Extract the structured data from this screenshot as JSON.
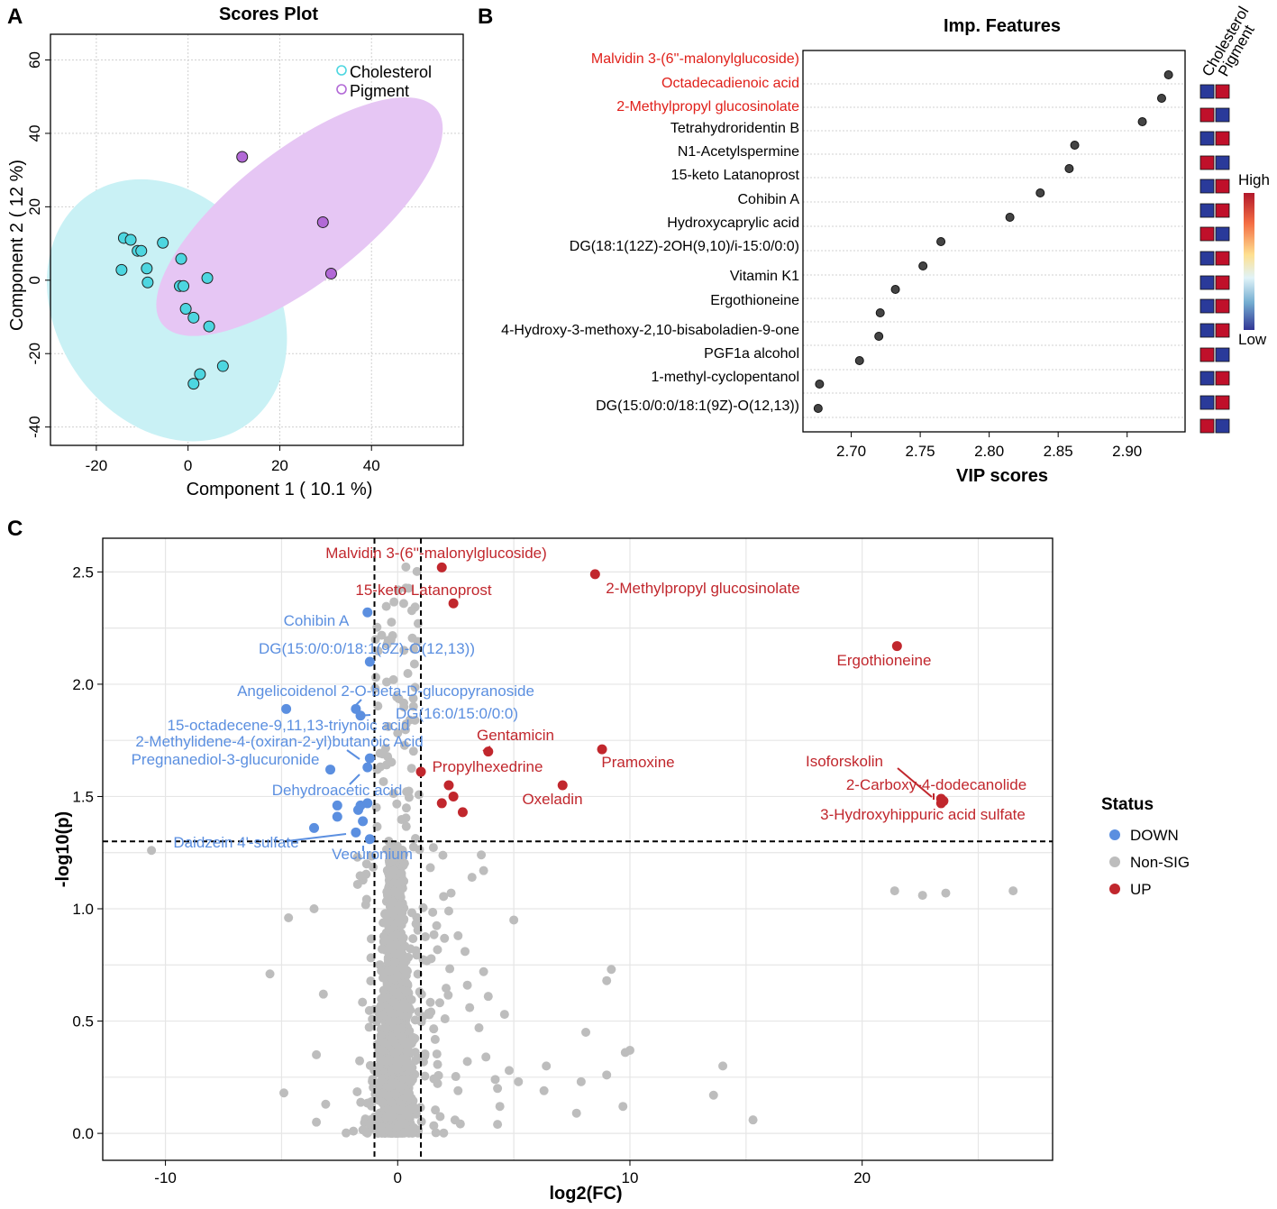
{
  "figure": {
    "panel_labels": [
      "A",
      "B",
      "C"
    ],
    "colors": {
      "cholesterol": "#4dd6e0",
      "cholesterol_ellipse": "#c9f1f5",
      "pigment": "#b269d6",
      "pigment_ellipse": "#e6c6f4",
      "up": "#c1272d",
      "down": "#5b8fe0",
      "nonsig": "#bdbdbd",
      "heat_high": "#c0102a",
      "heat_low": "#2a3a9a",
      "highlight_text": "#e0201a"
    }
  },
  "chart_data": [
    {
      "panel": "A",
      "type": "scatter",
      "title": "Scores Plot",
      "xlabel": "Component 1 ( 10.1 %)",
      "ylabel": "Component 2 ( 12 %)",
      "xlim": [
        -30,
        60
      ],
      "ylim": [
        -45,
        67
      ],
      "xticks": [
        -20,
        0,
        20,
        40
      ],
      "yticks": [
        60,
        40,
        20,
        0,
        -20,
        -40
      ],
      "grid": true,
      "legend": {
        "position": "top-right",
        "entries": [
          "Cholesterol",
          "Pigment"
        ]
      },
      "series": [
        {
          "name": "Cholesterol",
          "points": [
            [
              -14,
              11.5
            ],
            [
              -12.5,
              11
            ],
            [
              -11,
              8
            ],
            [
              -10.2,
              8
            ],
            [
              -5.5,
              10.2
            ],
            [
              -9,
              3.2
            ],
            [
              -14.5,
              2.8
            ],
            [
              -1.5,
              5.8
            ],
            [
              -8.8,
              -0.6
            ],
            [
              -1.8,
              -1.6
            ],
            [
              -1,
              -1.6
            ],
            [
              4.2,
              0.6
            ],
            [
              -0.5,
              -7.8
            ],
            [
              1.2,
              -10.2
            ],
            [
              4.6,
              -12.6
            ],
            [
              7.6,
              -23.4
            ],
            [
              2.6,
              -25.6
            ],
            [
              1.2,
              -28.2
            ]
          ],
          "ellipse": {
            "center": [
              -4.6,
              -8.2
            ],
            "rx": 24,
            "ry": 38,
            "angle_deg": -34
          }
        },
        {
          "name": "Pigment",
          "points": [
            [
              11.8,
              33.6
            ],
            [
              29.4,
              15.8
            ],
            [
              31.2,
              1.8
            ]
          ],
          "ellipse": {
            "center": [
              24.3,
              17.3
            ],
            "rx": 38,
            "ry": 18,
            "angle_deg": -38
          }
        }
      ]
    },
    {
      "panel": "B",
      "type": "scatter",
      "title": "Imp. Features",
      "xlabel": "VIP scores",
      "ylabel": "",
      "xlim": [
        2.665,
        2.942
      ],
      "xticks": [
        2.7,
        2.75,
        2.8,
        2.85,
        2.9
      ],
      "heatmap_columns": [
        "Cholesterol",
        "Pigment"
      ],
      "colorbar": {
        "high_label": "High",
        "low_label": "Low"
      },
      "features": [
        {
          "name": "Malvidin 3-(6''-malonylglucoside)",
          "vip": 2.93,
          "highlight": true,
          "cholesterol": "low",
          "pigment": "high"
        },
        {
          "name": "Octadecadienoic acid",
          "vip": 2.925,
          "highlight": true,
          "cholesterol": "high",
          "pigment": "low"
        },
        {
          "name": "2-Methylpropyl glucosinolate",
          "vip": 2.911,
          "highlight": true,
          "cholesterol": "low",
          "pigment": "high"
        },
        {
          "name": "Tetrahydroridentin B",
          "vip": 2.862,
          "highlight": false,
          "cholesterol": "high",
          "pigment": "low"
        },
        {
          "name": "N1-Acetylspermine",
          "vip": 2.858,
          "highlight": false,
          "cholesterol": "low",
          "pigment": "high"
        },
        {
          "name": "15-keto Latanoprost",
          "vip": 2.837,
          "highlight": false,
          "cholesterol": "low",
          "pigment": "high"
        },
        {
          "name": "Cohibin A",
          "vip": 2.815,
          "highlight": false,
          "cholesterol": "high",
          "pigment": "low"
        },
        {
          "name": "Hydroxycaprylic acid",
          "vip": 2.765,
          "highlight": false,
          "cholesterol": "low",
          "pigment": "high"
        },
        {
          "name": "DG(18:1(12Z)-2OH(9,10)/i-15:0/0:0)",
          "vip": 2.752,
          "highlight": false,
          "cholesterol": "low",
          "pigment": "high"
        },
        {
          "name": "Vitamin K1",
          "vip": 2.732,
          "highlight": false,
          "cholesterol": "low",
          "pigment": "high"
        },
        {
          "name": "Ergothioneine",
          "vip": 2.721,
          "highlight": false,
          "cholesterol": "low",
          "pigment": "high"
        },
        {
          "name": "4-Hydroxy-3-methoxy-2,10-bisaboladien-9-one",
          "vip": 2.72,
          "highlight": false,
          "cholesterol": "high",
          "pigment": "low"
        },
        {
          "name": "PGF1a alcohol",
          "vip": 2.706,
          "highlight": false,
          "cholesterol": "low",
          "pigment": "high"
        },
        {
          "name": "1-methyl-cyclopentanol",
          "vip": 2.677,
          "highlight": false,
          "cholesterol": "low",
          "pigment": "high"
        },
        {
          "name": "DG(15:0/0:0/18:1(9Z)-O(12,13))",
          "vip": 2.676,
          "highlight": false,
          "cholesterol": "high",
          "pigment": "low"
        },
        {
          "name": "",
          "vip": null,
          "highlight": false,
          "cholesterol": "low",
          "pigment": "high"
        }
      ]
    },
    {
      "panel": "C",
      "type": "scatter",
      "title": "",
      "xlabel": "log2(FC)",
      "ylabel": "-log10(p)",
      "xlim": [
        -12.7,
        28.2
      ],
      "ylim": [
        -0.12,
        2.65
      ],
      "xticks": [
        -10,
        0,
        10,
        20
      ],
      "yticks": [
        0.0,
        0.5,
        1.0,
        1.5,
        2.0,
        2.5
      ],
      "thresholds": {
        "fc_low": -1,
        "fc_high": 1,
        "p": 1.3
      },
      "legend": {
        "title": "Status",
        "position": "right",
        "entries": [
          "DOWN",
          "Non-SIG",
          "UP"
        ]
      },
      "up_points": [
        {
          "x": 1.9,
          "y": 2.52,
          "label": "Malvidin 3-(6''-malonylglucoside)"
        },
        {
          "x": 8.5,
          "y": 2.49,
          "label": "2-Methylpropyl glucosinolate"
        },
        {
          "x": 2.4,
          "y": 2.36,
          "label": "15-keto Latanoprost"
        },
        {
          "x": 21.5,
          "y": 2.17,
          "label": "Ergothioneine"
        },
        {
          "x": 3.9,
          "y": 1.7,
          "label": "Gentamicin"
        },
        {
          "x": 8.8,
          "y": 1.71,
          "label": "Pramoxine"
        },
        {
          "x": 1.0,
          "y": 1.61,
          "label": "Propylhexedrine"
        },
        {
          "x": 7.1,
          "y": 1.55,
          "label": "Oxeladin"
        },
        {
          "x": 23.4,
          "y": 1.49,
          "label": "Isoforskolin"
        },
        {
          "x": 23.5,
          "y": 1.48,
          "label": "2-Carboxy-4-dodecanolide"
        },
        {
          "x": 23.4,
          "y": 1.47,
          "label": "3-Hydroxyhippuric acid sulfate"
        },
        {
          "x": 2.2,
          "y": 1.55,
          "label": ""
        },
        {
          "x": 2.4,
          "y": 1.5,
          "label": ""
        },
        {
          "x": 1.9,
          "y": 1.47,
          "label": ""
        },
        {
          "x": 2.8,
          "y": 1.43,
          "label": ""
        }
      ],
      "down_points": [
        {
          "x": -1.3,
          "y": 2.32,
          "label": "Cohibin A"
        },
        {
          "x": -1.2,
          "y": 2.1,
          "label": "DG(15:0/0:0/18:1(9Z)-O(12,13))"
        },
        {
          "x": -1.8,
          "y": 1.89,
          "label": "Angelicoidenol 2-O-beta-D-glucopyranoside"
        },
        {
          "x": -1.6,
          "y": 1.86,
          "label": "DG(16:0/15:0/0:0)"
        },
        {
          "x": -4.8,
          "y": 1.89,
          "label": "15-octadecene-9,11,13-triynoic acid"
        },
        {
          "x": -1.2,
          "y": 1.67,
          "label": "2-Methylidene-4-(oxiran-2-yl)butanoic Acid"
        },
        {
          "x": -2.9,
          "y": 1.62,
          "label": "Pregnanediol-3-glucuronide"
        },
        {
          "x": -1.3,
          "y": 1.63,
          "label": "Dehydroacetic acid"
        },
        {
          "x": -3.6,
          "y": 1.36,
          "label": "Daidzein 4'-sulfate"
        },
        {
          "x": -1.2,
          "y": 1.31,
          "label": "Vecuronium"
        },
        {
          "x": -1.8,
          "y": 1.34,
          "label": ""
        },
        {
          "x": -2.6,
          "y": 1.46,
          "label": ""
        },
        {
          "x": -1.6,
          "y": 1.46,
          "label": ""
        },
        {
          "x": -1.3,
          "y": 1.47,
          "label": ""
        },
        {
          "x": -2.6,
          "y": 1.41,
          "label": ""
        },
        {
          "x": -1.5,
          "y": 1.39,
          "label": ""
        },
        {
          "x": -1.7,
          "y": 1.44,
          "label": ""
        }
      ],
      "nonsig_extra_points": [
        [
          -10.6,
          1.26
        ],
        [
          21.4,
          1.08
        ],
        [
          22.6,
          1.06
        ],
        [
          23.6,
          1.07
        ],
        [
          26.5,
          1.08
        ],
        [
          -4.7,
          0.96
        ],
        [
          -3.6,
          1.0
        ],
        [
          -5.5,
          0.71
        ],
        [
          -3.2,
          0.62
        ],
        [
          -3.5,
          0.35
        ],
        [
          -4.9,
          0.18
        ],
        [
          -3.5,
          0.05
        ],
        [
          -3.1,
          0.13
        ],
        [
          15.3,
          0.06
        ],
        [
          14.0,
          0.3
        ],
        [
          13.6,
          0.17
        ],
        [
          10.0,
          0.37
        ],
        [
          9.8,
          0.36
        ],
        [
          9.7,
          0.12
        ],
        [
          9.0,
          0.26
        ],
        [
          9.2,
          0.73
        ],
        [
          8.1,
          0.45
        ],
        [
          9.0,
          0.68
        ],
        [
          7.9,
          0.23
        ],
        [
          7.7,
          0.09
        ],
        [
          6.4,
          0.3
        ],
        [
          6.3,
          0.19
        ],
        [
          5.2,
          0.23
        ],
        [
          4.8,
          0.28
        ],
        [
          4.3,
          0.04
        ],
        [
          4.6,
          0.53
        ],
        [
          4.4,
          0.12
        ],
        [
          3.9,
          0.61
        ],
        [
          3.8,
          0.34
        ],
        [
          3.5,
          0.47
        ],
        [
          3.1,
          0.56
        ],
        [
          2.9,
          0.81
        ],
        [
          2.6,
          0.88
        ],
        [
          2.3,
          1.07
        ],
        [
          2.2,
          0.99
        ],
        [
          3.2,
          1.14
        ],
        [
          3.7,
          1.17
        ],
        [
          3.6,
          1.24
        ],
        [
          3.7,
          0.72
        ],
        [
          3.0,
          0.66
        ],
        [
          4.2,
          0.24
        ],
        [
          4.3,
          0.2
        ],
        [
          3.0,
          0.32
        ],
        [
          2.6,
          0.19
        ],
        [
          5.0,
          0.95
        ]
      ],
      "labels": {
        "status_title": "Status",
        "legend_down": "DOWN",
        "legend_nonsig": "Non-SIG",
        "legend_up": "UP"
      }
    }
  ]
}
